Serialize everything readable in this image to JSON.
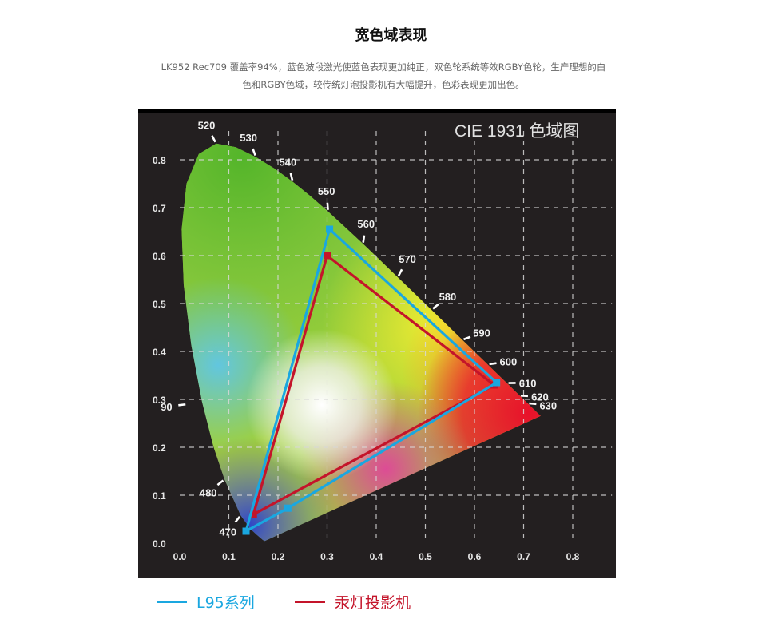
{
  "header": {
    "title": "宽色域表现",
    "description": "LK952 Rec709 覆盖率94%，蓝色波段激光使蓝色表现更加纯正，双色轮系统等效RGBY色轮，生产理想的白色和RGBY色域，较传统灯泡投影机有大幅提升，色彩表现更加出色。"
  },
  "chart_data": {
    "type": "scatter",
    "title": "CIE 1931 色域图",
    "xlim": [
      0,
      0.8
    ],
    "ylim": [
      0,
      0.8
    ],
    "x_ticks": [
      "0.0",
      "0.1",
      "0.2",
      "0.3",
      "0.4",
      "0.5",
      "0.6",
      "0.7",
      "0.8"
    ],
    "y_ticks": [
      "0.0",
      "0.1",
      "0.2",
      "0.3",
      "0.4",
      "0.5",
      "0.6",
      "0.7",
      "0.8"
    ],
    "grid": true,
    "locus_labels": [
      {
        "label": "520",
        "x": 0.074,
        "y": 0.834
      },
      {
        "label": "530",
        "x": 0.155,
        "y": 0.806
      },
      {
        "label": "540",
        "x": 0.23,
        "y": 0.754
      },
      {
        "label": "550",
        "x": 0.302,
        "y": 0.692
      },
      {
        "label": "560",
        "x": 0.373,
        "y": 0.624
      },
      {
        "label": "570",
        "x": 0.444,
        "y": 0.555
      },
      {
        "label": "580",
        "x": 0.513,
        "y": 0.487
      },
      {
        "label": "590",
        "x": 0.575,
        "y": 0.424
      },
      {
        "label": "600",
        "x": 0.627,
        "y": 0.373
      },
      {
        "label": "610",
        "x": 0.666,
        "y": 0.334
      },
      {
        "label": "620",
        "x": 0.691,
        "y": 0.308
      },
      {
        "label": "630",
        "x": 0.708,
        "y": 0.292
      },
      {
        "label": "90",
        "x": 0.015,
        "y": 0.29
      },
      {
        "label": "480",
        "x": 0.091,
        "y": 0.133
      },
      {
        "label": "470",
        "x": 0.124,
        "y": 0.058
      }
    ],
    "series": [
      {
        "name": "L95系列",
        "color": "#1aa7e0",
        "points": [
          {
            "x": 0.305,
            "y": 0.655
          },
          {
            "x": 0.645,
            "y": 0.335
          },
          {
            "x": 0.22,
            "y": 0.073
          },
          {
            "x": 0.135,
            "y": 0.025
          }
        ]
      },
      {
        "name": "汞灯投影机",
        "color": "#c4142a",
        "points": [
          {
            "x": 0.3,
            "y": 0.6
          },
          {
            "x": 0.64,
            "y": 0.33
          },
          {
            "x": 0.15,
            "y": 0.06
          }
        ]
      }
    ]
  }
}
